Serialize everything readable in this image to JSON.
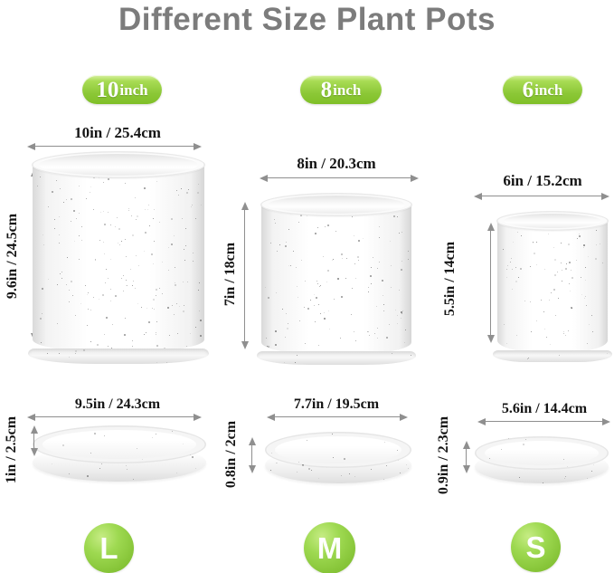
{
  "title": "Different Size Plant Pots",
  "pots": [
    {
      "badge_number": "10",
      "badge_unit": "inch",
      "size_letter": "L",
      "pot_width": "10in / 25.4cm",
      "pot_height": "9.6in / 24.5cm",
      "saucer_width": "9.5in / 24.3cm",
      "saucer_height": "1in / 2.5cm"
    },
    {
      "badge_number": "8",
      "badge_unit": "inch",
      "size_letter": "M",
      "pot_width": "8in / 20.3cm",
      "pot_height": "7in / 18cm",
      "saucer_width": "7.7in / 19.5cm",
      "saucer_height": "0.8in / 2cm"
    },
    {
      "badge_number": "6",
      "badge_unit": "inch",
      "size_letter": "S",
      "pot_width": "6in / 15.2cm",
      "pot_height": "5.5in / 14cm",
      "saucer_width": "5.6in / 14.4cm",
      "saucer_height": "0.9in / 2.3cm"
    }
  ],
  "colors": {
    "badge_green": "#8cc837",
    "circle_green": "#88c63a",
    "title_gray": "#7c7c7c",
    "dimension_text": "#141414",
    "arrow_gray": "#8f8f8f",
    "pot_white": "#ffffff"
  }
}
